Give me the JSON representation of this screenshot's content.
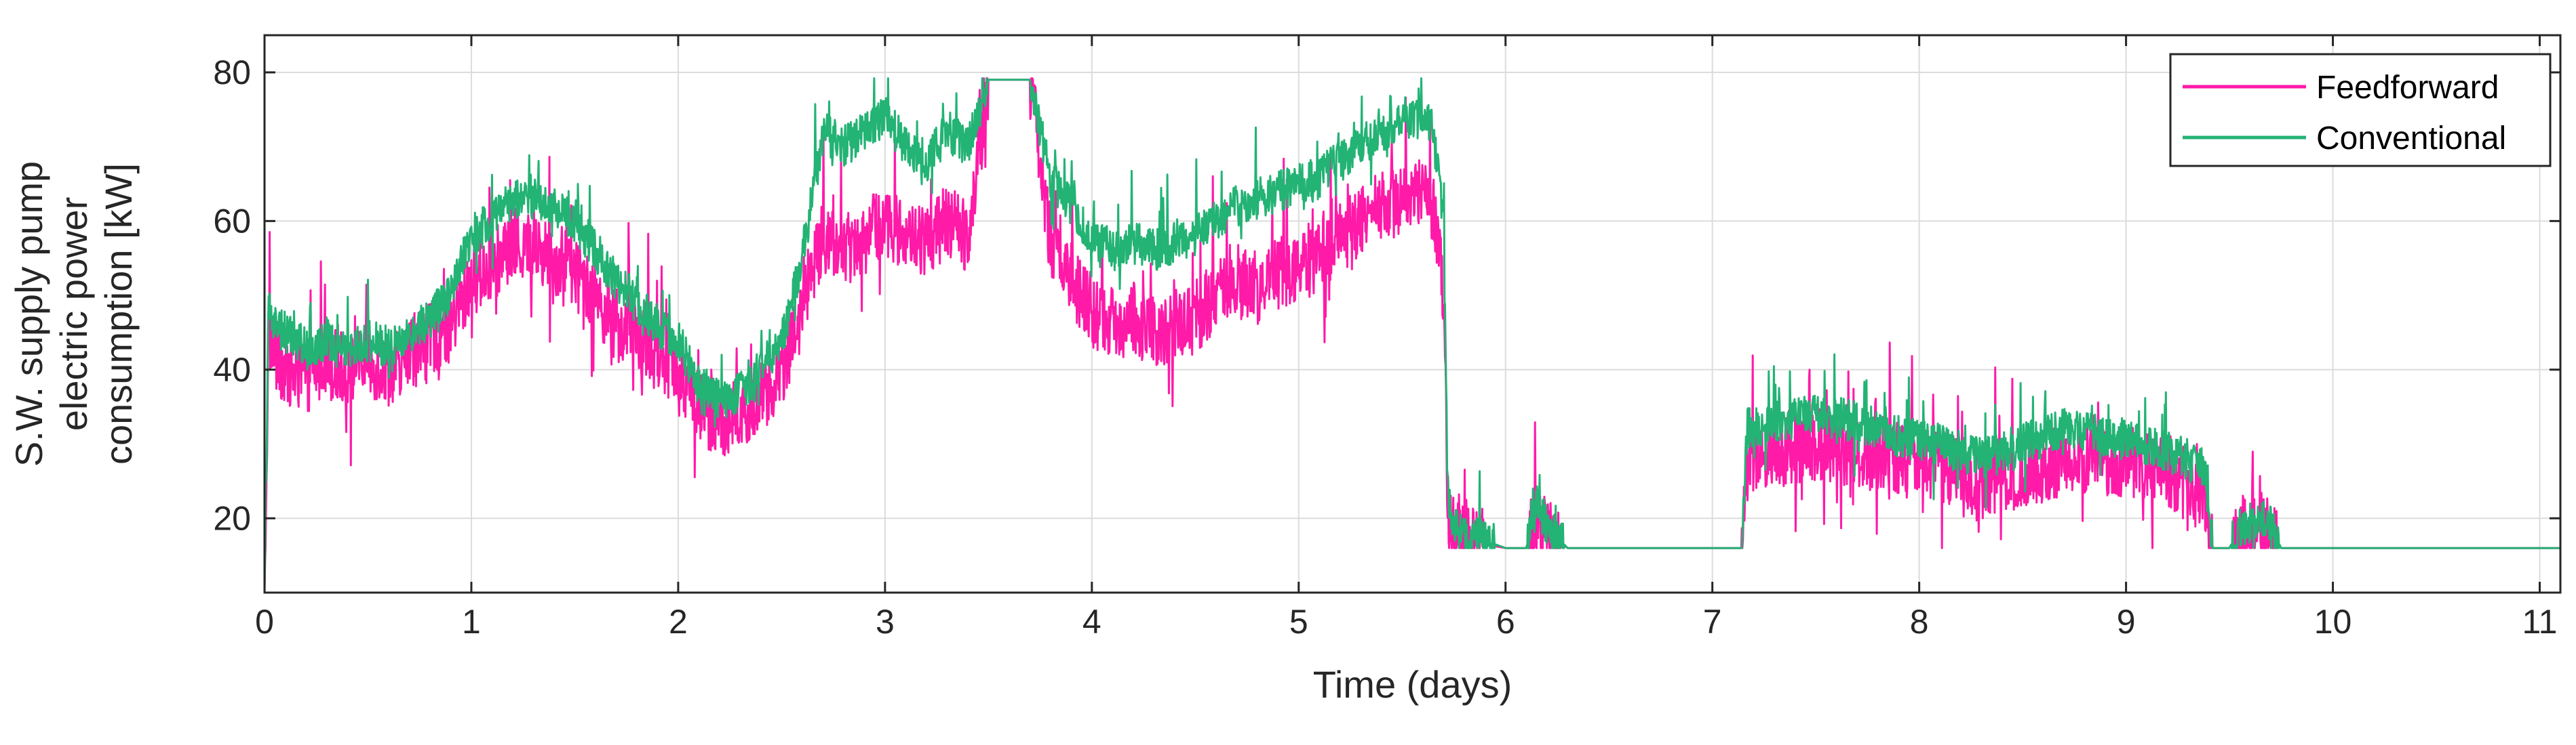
{
  "chart_data": {
    "type": "line",
    "title": "",
    "xlabel": "Time (days)",
    "ylabel_lines": [
      "S.W. supply pump",
      "electric power",
      "consumption [kW]"
    ],
    "xlim": [
      0,
      11.1
    ],
    "ylim": [
      10,
      85
    ],
    "xticks": [
      0,
      1,
      2,
      3,
      4,
      5,
      6,
      7,
      8,
      9,
      10,
      11
    ],
    "yticks": [
      20,
      40,
      60,
      80
    ],
    "grid": true,
    "legend_position": "top-right",
    "series": [
      {
        "name": "Feedforward",
        "color": "#ff1aa8",
        "noise": 7,
        "x": [
          0,
          0.02,
          0.05,
          0.1,
          0.2,
          0.3,
          0.4,
          0.5,
          0.6,
          0.7,
          0.8,
          0.9,
          1.0,
          1.1,
          1.2,
          1.3,
          1.4,
          1.5,
          1.6,
          1.7,
          1.8,
          1.9,
          2.0,
          2.1,
          2.2,
          2.3,
          2.4,
          2.5,
          2.6,
          2.7,
          2.8,
          2.9,
          3.0,
          3.1,
          3.2,
          3.3,
          3.4,
          3.5,
          3.6,
          3.7,
          3.8,
          3.9,
          4.0,
          4.1,
          4.2,
          4.3,
          4.4,
          4.5,
          4.6,
          4.7,
          4.8,
          4.9,
          5.0,
          5.1,
          5.2,
          5.3,
          5.4,
          5.5,
          5.6,
          5.65,
          5.7,
          5.72,
          5.75,
          5.8,
          6.0,
          6.1,
          6.15,
          6.2,
          6.3,
          7.0,
          7.14,
          7.17,
          7.3,
          7.5,
          7.7,
          7.9,
          8.1,
          8.3,
          8.5,
          8.7,
          8.9,
          9.1,
          9.3,
          9.38,
          9.42,
          9.5,
          9.55,
          9.65,
          9.7,
          9.75,
          10.0,
          11.1
        ],
        "y": [
          10,
          45,
          42,
          40,
          39,
          41,
          40,
          41,
          40,
          42,
          44,
          46,
          52,
          54,
          57,
          56,
          55,
          53,
          50,
          46,
          44,
          42,
          40,
          35,
          33,
          34,
          36,
          40,
          48,
          58,
          56,
          58,
          60,
          58,
          57,
          60,
          58,
          79,
          79,
          79,
          57,
          52,
          48,
          46,
          47,
          45,
          46,
          47,
          50,
          52,
          51,
          53,
          54,
          55,
          58,
          60,
          62,
          63,
          64,
          62,
          50,
          22,
          18,
          17,
          16,
          16,
          20,
          18,
          16,
          16,
          16,
          28,
          29,
          30,
          29,
          28,
          27,
          25,
          26,
          28,
          28,
          27,
          24,
          23,
          16,
          16,
          18,
          19,
          18,
          16,
          16,
          16
        ]
      },
      {
        "name": "Conventional",
        "color": "#23b374",
        "noise": 4,
        "x": [
          0,
          0.02,
          0.05,
          0.1,
          0.2,
          0.3,
          0.4,
          0.5,
          0.6,
          0.7,
          0.8,
          0.9,
          1.0,
          1.1,
          1.2,
          1.3,
          1.4,
          1.5,
          1.6,
          1.7,
          1.8,
          1.9,
          2.0,
          2.1,
          2.2,
          2.3,
          2.4,
          2.5,
          2.6,
          2.7,
          2.8,
          2.9,
          3.0,
          3.1,
          3.2,
          3.3,
          3.4,
          3.5,
          3.6,
          3.7,
          3.8,
          3.9,
          4.0,
          4.1,
          4.2,
          4.3,
          4.4,
          4.5,
          4.6,
          4.7,
          4.8,
          4.9,
          5.0,
          5.1,
          5.2,
          5.3,
          5.4,
          5.5,
          5.6,
          5.65,
          5.7,
          5.72,
          5.75,
          5.8,
          6.0,
          6.1,
          6.15,
          6.2,
          6.3,
          7.0,
          7.14,
          7.17,
          7.3,
          7.5,
          7.7,
          7.9,
          8.1,
          8.3,
          8.5,
          8.7,
          8.9,
          9.1,
          9.3,
          9.38,
          9.42,
          9.5,
          9.55,
          9.65,
          9.7,
          9.75,
          10.0,
          11.1
        ],
        "y": [
          10,
          48,
          46,
          45,
          43,
          44,
          43,
          44,
          43,
          45,
          47,
          50,
          58,
          60,
          63,
          63,
          62,
          60,
          56,
          52,
          49,
          46,
          44,
          38,
          36,
          37,
          40,
          44,
          55,
          72,
          70,
          72,
          74,
          70,
          68,
          72,
          70,
          79,
          79,
          79,
          66,
          62,
          58,
          56,
          57,
          56,
          57,
          58,
          60,
          62,
          63,
          64,
          65,
          66,
          68,
          70,
          72,
          73,
          74,
          72,
          60,
          24,
          19,
          18,
          16,
          16,
          22,
          19,
          16,
          16,
          16,
          32,
          33,
          34,
          33,
          31,
          30,
          28,
          30,
          32,
          31,
          30,
          28,
          27,
          16,
          16,
          19,
          20,
          19,
          16,
          16,
          16
        ]
      }
    ]
  }
}
